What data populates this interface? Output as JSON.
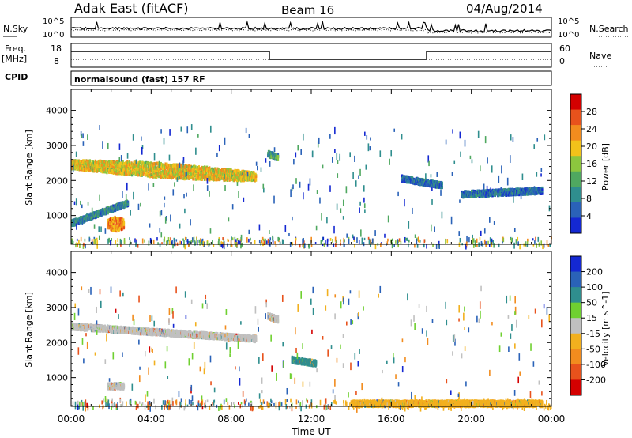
{
  "header": {
    "radar": "Adak East (fitACF)",
    "beam": "Beam 16",
    "date": "04/Aug/2014"
  },
  "status": {
    "nsky_label": "N.Sky",
    "nsearch_label": "N.Search",
    "noise_ticks": [
      "10^5",
      "10^0"
    ],
    "freq_label": "Freq.",
    "freq_unit": "[MHz]",
    "freq_ticks": [
      "18",
      "8"
    ],
    "nave_label": "Nave",
    "nave_ticks": [
      "60",
      "0"
    ],
    "cpid_label": "CPID",
    "cpid_value": "normalsound (fast) 157 RF"
  },
  "colors": {
    "power": [
      "#1428d2",
      "#2a62b8",
      "#2f8e8e",
      "#4fa860",
      "#8cc63e",
      "#f2c21a",
      "#f28c1e",
      "#e8521c",
      "#d40000"
    ],
    "velocity": [
      "#1428d2",
      "#2a62b8",
      "#2f8e8e",
      "#6fd030",
      "#c0c0c0",
      "#f2b01e",
      "#f28c1e",
      "#e8521c",
      "#d40000"
    ],
    "ground_scatter": "#c0c0c0"
  },
  "chart_data": [
    {
      "type": "heatmap",
      "title": "",
      "xlabel": "Time UT",
      "ylabel": "Slant Range [km]",
      "x_ticks": [
        "00:00",
        "04:00",
        "08:00",
        "12:00",
        "16:00",
        "20:00",
        "00:00"
      ],
      "xlim_hours": [
        0,
        24
      ],
      "y_ticks": [
        1000,
        2000,
        3000,
        4000
      ],
      "ylim": [
        180,
        4600
      ],
      "colorbar_label": "Power [dB]",
      "colorbar_ticks": [
        4,
        8,
        12,
        16,
        20,
        24,
        28
      ],
      "colorbar_range": [
        0,
        30
      ],
      "features": [
        {
          "start_h": 0.0,
          "end_h": 9.2,
          "range_start_km": 2500,
          "range_end_km": 2150,
          "level_db": 18
        },
        {
          "start_h": 9.8,
          "end_h": 10.3,
          "range_start_km": 2800,
          "range_end_km": 2700,
          "level_db": 10
        },
        {
          "start_h": 0.0,
          "end_h": 2.8,
          "range_start_km": 820,
          "range_end_km": 1400,
          "level_db": 8
        },
        {
          "start_h": 1.8,
          "end_h": 2.6,
          "range_start_km": 800,
          "range_end_km": 800,
          "level_db": 22
        },
        {
          "start_h": 16.5,
          "end_h": 18.5,
          "range_start_km": 2100,
          "range_end_km": 1900,
          "level_db": 6
        },
        {
          "start_h": 19.5,
          "end_h": 23.5,
          "range_start_km": 1650,
          "range_end_km": 1750,
          "level_db": 6
        }
      ]
    },
    {
      "type": "heatmap",
      "title": "",
      "xlabel": "Time UT",
      "ylabel": "Slant Range [km]",
      "x_ticks": [
        "00:00",
        "04:00",
        "08:00",
        "12:00",
        "16:00",
        "20:00",
        "00:00"
      ],
      "xlim_hours": [
        0,
        24
      ],
      "y_ticks": [
        1000,
        2000,
        3000,
        4000
      ],
      "ylim": [
        180,
        4600
      ],
      "colorbar_label": "Velocity [m s^-1]",
      "colorbar_ticks": [
        200,
        100,
        50,
        15,
        -15,
        -50,
        -100,
        -200
      ],
      "colorbar_range": [
        -250,
        250
      ],
      "features": [
        {
          "start_h": 0.0,
          "end_h": 9.2,
          "range_start_km": 2500,
          "range_end_km": 2150,
          "velocity": 0
        },
        {
          "start_h": 9.8,
          "end_h": 10.3,
          "range_start_km": 2800,
          "range_end_km": 2700,
          "velocity": 0
        },
        {
          "start_h": 1.8,
          "end_h": 2.6,
          "range_start_km": 800,
          "range_end_km": 800,
          "velocity": 0
        },
        {
          "start_h": 11.0,
          "end_h": 12.2,
          "range_start_km": 1550,
          "range_end_km": 1450,
          "velocity": 120
        },
        {
          "start_h": 14.0,
          "end_h": 23.5,
          "range_start_km": 300,
          "range_end_km": 300,
          "velocity": -60
        }
      ]
    }
  ]
}
